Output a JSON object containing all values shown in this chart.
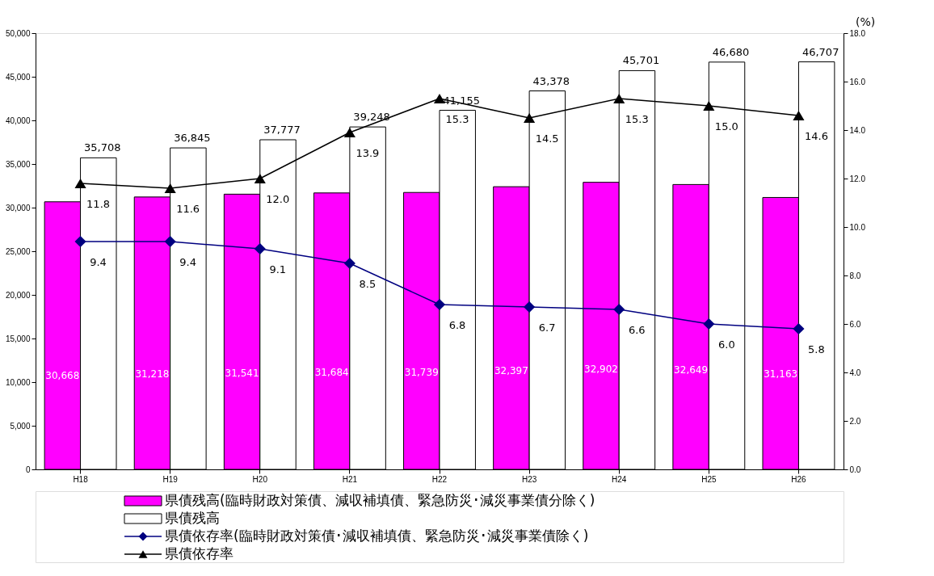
{
  "chart_data": {
    "type": "bar",
    "categories": [
      "H18",
      "H19",
      "H20",
      "H21",
      "H22",
      "H23",
      "H24",
      "H25",
      "H26"
    ],
    "y2label": "(%)",
    "ylim": [
      0,
      50000
    ],
    "yticks": [
      {
        "value": 0,
        "label": "0"
      },
      {
        "value": 5000,
        "label": "5,000"
      },
      {
        "value": 10000,
        "label": "10,000"
      },
      {
        "value": 15000,
        "label": "15,000"
      },
      {
        "value": 20000,
        "label": "20,000"
      },
      {
        "value": 25000,
        "label": "25,000"
      },
      {
        "value": 30000,
        "label": "30,000"
      },
      {
        "value": 35000,
        "label": "35,000"
      },
      {
        "value": 40000,
        "label": "40,000"
      },
      {
        "value": 45000,
        "label": "45,000"
      },
      {
        "value": 50000,
        "label": "50,000"
      }
    ],
    "y2lim": [
      0,
      18
    ],
    "y2ticks": [
      {
        "value": 0,
        "label": "0.0"
      },
      {
        "value": 2,
        "label": "2.0"
      },
      {
        "value": 4,
        "label": "4.0"
      },
      {
        "value": 6,
        "label": "6.0"
      },
      {
        "value": 8,
        "label": "8.0"
      },
      {
        "value": 10,
        "label": "10.0"
      },
      {
        "value": 12,
        "label": "12.0"
      },
      {
        "value": 14,
        "label": "14.0"
      },
      {
        "value": 16,
        "label": "16.0"
      },
      {
        "value": 18,
        "label": "18.0"
      }
    ],
    "grid": false,
    "legend": "bottom",
    "series": [
      {
        "name": "県債残高(臨時財政対策債、減収補填債、緊急防災･減災事業債分除く)",
        "color": "#ff00ff",
        "values": [
          30668,
          31218,
          31541,
          31684,
          31739,
          32397,
          32902,
          32649,
          31163
        ],
        "value_labels": [
          "30,668",
          "31,218",
          "31,541",
          "31,684",
          "31,739",
          "32,397",
          "32,902",
          "32,649",
          "31,163"
        ]
      },
      {
        "name": "県債残高",
        "color": "#ffffff",
        "values": [
          35708,
          36845,
          37777,
          39248,
          41155,
          43378,
          45701,
          46680,
          46707
        ],
        "value_labels": [
          "35,708",
          "36,845",
          "37,777",
          "39,248",
          "41,155",
          "43,378",
          "45,701",
          "46,680",
          "46,707"
        ]
      },
      {
        "name": "県債依存率(臨時財政対策債･減収補填債、緊急防災･減災事業債除く)",
        "type": "line",
        "axis": "y2",
        "marker": "diamond",
        "color": "#000080",
        "values": [
          9.4,
          9.4,
          9.1,
          8.5,
          6.8,
          6.7,
          6.6,
          6.0,
          5.8
        ],
        "value_labels": [
          "9.4",
          "9.4",
          "9.1",
          "8.5",
          "6.8",
          "6.7",
          "6.6",
          "6.0",
          "5.8"
        ]
      },
      {
        "name": "県債依存率",
        "type": "line",
        "axis": "y2",
        "marker": "triangle",
        "color": "#000000",
        "values": [
          11.8,
          11.6,
          12.0,
          13.9,
          15.3,
          14.5,
          15.3,
          15.0,
          14.6
        ],
        "value_labels": [
          "11.8",
          "11.6",
          "12.0",
          "13.9",
          "15.3",
          "14.5",
          "15.3",
          "15.0",
          "14.6"
        ]
      }
    ]
  }
}
